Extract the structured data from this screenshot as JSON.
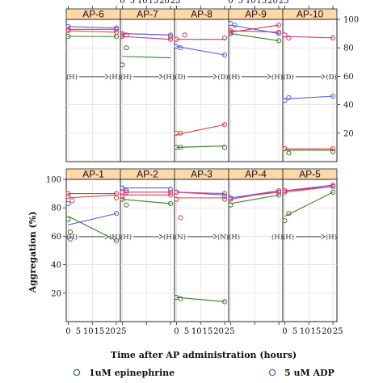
{
  "chart_data": {
    "type": "line",
    "ylabel": "Aggregation (%)",
    "xlabel": "Time after AP administration (hours)",
    "ylim": [
      0,
      100
    ],
    "xlim": [
      -1,
      26
    ],
    "y_ticks": [
      20,
      40,
      60,
      80,
      100
    ],
    "x_tick_labels": [
      "0",
      "5",
      "10",
      "15",
      "20",
      "25"
    ],
    "legend": [
      {
        "label": "1uM epinephrine",
        "color": "#3d7a2a"
      },
      {
        "label": "5 uM ADP",
        "color": "#5566dd"
      }
    ],
    "series_colors": {
      "green": "#3d7a2a",
      "red": "#e0403a",
      "blue": "#5566dd",
      "pink": "#d9336f"
    },
    "panels": [
      {
        "name": "AP-6",
        "markers": [
          "H",
          "H"
        ],
        "marker_line": true,
        "green": {
          "points": [
            [
              0,
              88
            ],
            [
              24,
              88
            ]
          ],
          "line": [
            [
              0,
              88
            ],
            [
              24,
              88
            ]
          ]
        },
        "red": {
          "points": [
            [
              0,
              92
            ],
            [
              24,
              91
            ]
          ],
          "line": [
            [
              0,
              92
            ],
            [
              24,
              91
            ]
          ]
        },
        "blue": {
          "points": [
            [
              0,
              95
            ],
            [
              24,
              94
            ]
          ],
          "line": [
            [
              0,
              95
            ],
            [
              24,
              94
            ]
          ]
        },
        "pink": {
          "points": [
            [
              0,
              93
            ],
            [
              24,
              93
            ]
          ],
          "line": [
            [
              0,
              93
            ],
            [
              24,
              93
            ]
          ]
        }
      },
      {
        "name": "AP-7",
        "markers": [
          "H",
          "H"
        ],
        "marker_line": true,
        "green": {
          "points": [
            [
              0,
              68
            ],
            [
              2,
              80
            ]
          ],
          "line": [
            [
              0,
              74
            ],
            [
              24,
              73
            ]
          ]
        },
        "red": {
          "points": [
            [
              0,
              89
            ],
            [
              2,
              89
            ],
            [
              24,
              88
            ]
          ],
          "line": [
            [
              0,
              90
            ],
            [
              24,
              89
            ]
          ]
        },
        "blue": {
          "points": [
            [
              0,
              90
            ],
            [
              24,
              89
            ]
          ],
          "line": [
            [
              0,
              90
            ],
            [
              24,
              89
            ]
          ]
        },
        "pink": {
          "points": [
            [
              0,
              88
            ],
            [
              24,
              86
            ]
          ],
          "line": [
            [
              0,
              88
            ],
            [
              24,
              86
            ]
          ]
        }
      },
      {
        "name": "AP-8",
        "markers": [
          "D",
          "D"
        ],
        "marker_line": true,
        "green": {
          "points": [
            [
              0,
              10
            ],
            [
              2,
              10
            ],
            [
              24,
              10
            ]
          ],
          "line": [
            [
              0,
              10
            ],
            [
              24,
              11
            ]
          ]
        },
        "red": {
          "points": [
            [
              0,
              20
            ],
            [
              2,
              20
            ],
            [
              24,
              26
            ]
          ],
          "line": [
            [
              0,
              19
            ],
            [
              24,
              26
            ]
          ]
        },
        "blue": {
          "points": [
            [
              0,
              81
            ],
            [
              2,
              80
            ],
            [
              24,
              75
            ]
          ],
          "line": [
            [
              0,
              81
            ],
            [
              24,
              75
            ]
          ]
        },
        "pink": {
          "points": [
            [
              0,
              86
            ],
            [
              4,
              89
            ],
            [
              24,
              87
            ]
          ],
          "line": [
            [
              0,
              86
            ],
            [
              24,
              86
            ]
          ]
        }
      },
      {
        "name": "AP-9",
        "markers": [
          "H",
          "H"
        ],
        "marker_line": true,
        "green": {
          "points": [
            [
              0,
              90
            ],
            [
              24,
              85
            ]
          ],
          "line": [
            [
              0,
              90
            ],
            [
              24,
              85
            ]
          ]
        },
        "red": {
          "points": [
            [
              0,
              92
            ],
            [
              24,
              91
            ]
          ],
          "line": [
            [
              0,
              92
            ],
            [
              24,
              91
            ]
          ]
        },
        "blue": {
          "points": [
            [
              0,
              97
            ],
            [
              2,
              96
            ],
            [
              24,
              90
            ]
          ],
          "line": [
            [
              0,
              96
            ],
            [
              24,
              90
            ]
          ]
        },
        "pink": {
          "points": [
            [
              0,
              91
            ],
            [
              24,
              96
            ]
          ],
          "line": [
            [
              0,
              91
            ],
            [
              24,
              96
            ]
          ]
        }
      },
      {
        "name": "AP-10",
        "markers": [
          "D",
          "D"
        ],
        "marker_line": true,
        "green": {
          "points": [
            [
              0,
              9
            ],
            [
              2,
              6
            ],
            [
              24,
              7
            ]
          ],
          "line": [
            [
              0,
              8
            ],
            [
              24,
              8
            ]
          ]
        },
        "red": {
          "points": [
            [
              0,
              9
            ],
            [
              24,
              9
            ]
          ],
          "line": [
            [
              0,
              9
            ],
            [
              24,
              9
            ]
          ]
        },
        "blue": {
          "points": [
            [
              0,
              43
            ],
            [
              2,
              45
            ],
            [
              24,
              46
            ]
          ],
          "line": [
            [
              0,
              44
            ],
            [
              24,
              46
            ]
          ]
        },
        "pink": {
          "points": [
            [
              0,
              89
            ],
            [
              2,
              87
            ],
            [
              24,
              87
            ]
          ],
          "line": [
            [
              0,
              88
            ],
            [
              24,
              87
            ]
          ]
        }
      },
      {
        "name": "AP-1",
        "markers": [
          "H",
          "H"
        ],
        "marker_line": true,
        "green": {
          "points": [
            [
              0,
              72
            ],
            [
              1,
              63
            ],
            [
              24,
              57
            ]
          ],
          "line": [
            [
              0,
              74
            ],
            [
              24,
              57
            ]
          ]
        },
        "red": {
          "points": [
            [
              0,
              88
            ],
            [
              2,
              85
            ],
            [
              24,
              87
            ]
          ],
          "line": [
            [
              0,
              87
            ],
            [
              24,
              89
            ]
          ]
        },
        "blue": {
          "points": [
            [
              0,
              83
            ],
            [
              1,
              58
            ],
            [
              24,
              76
            ]
          ],
          "line": [
            [
              0,
              68
            ],
            [
              24,
              76
            ]
          ]
        },
        "pink": {
          "points": [
            [
              0,
              90
            ],
            [
              24,
              90
            ]
          ],
          "line": [
            [
              0,
              90
            ],
            [
              24,
              90
            ]
          ]
        }
      },
      {
        "name": "AP-2",
        "markers": [
          "H",
          "H"
        ],
        "marker_line": true,
        "green": {
          "points": [
            [
              0,
              86
            ],
            [
              2,
              82
            ],
            [
              24,
              83
            ]
          ],
          "line": [
            [
              0,
              86
            ],
            [
              24,
              83
            ]
          ]
        },
        "red": {
          "points": [
            [
              0,
              88
            ],
            [
              24,
              89
            ]
          ],
          "line": [
            [
              0,
              89
            ],
            [
              24,
              89
            ]
          ]
        },
        "blue": {
          "points": [
            [
              0,
              94
            ],
            [
              2,
              92
            ],
            [
              24,
              93
            ]
          ],
          "line": [
            [
              0,
              94
            ],
            [
              24,
              94
            ]
          ]
        },
        "pink": {
          "points": [
            [
              0,
              91
            ],
            [
              2,
              91
            ],
            [
              24,
              91
            ]
          ],
          "line": [
            [
              0,
              91
            ],
            [
              24,
              91
            ]
          ]
        }
      },
      {
        "name": "AP-3",
        "markers": [
          "N",
          "N"
        ],
        "marker_line": true,
        "green": {
          "points": [
            [
              0,
              17
            ],
            [
              2,
              16
            ],
            [
              24,
              14
            ]
          ],
          "line": [
            [
              0,
              17
            ],
            [
              24,
              14
            ]
          ]
        },
        "red": {
          "points": [
            [
              0,
              86
            ],
            [
              2,
              73
            ],
            [
              24,
              86
            ]
          ],
          "line": [
            [
              0,
              87
            ],
            [
              24,
              87
            ]
          ]
        },
        "blue": {
          "points": [
            [
              0,
              91
            ],
            [
              24,
              88
            ]
          ],
          "line": [
            [
              0,
              91
            ],
            [
              24,
              89
            ]
          ]
        },
        "pink": {
          "points": [
            [
              0,
              91
            ],
            [
              24,
              90
            ]
          ],
          "line": [
            [
              0,
              91
            ],
            [
              24,
              90
            ]
          ]
        }
      },
      {
        "name": "AP-4",
        "markers": [
          "H",
          "H"
        ],
        "marker_line": false,
        "green": {
          "points": [
            [
              0,
              82
            ],
            [
              24,
              89
            ]
          ],
          "line": [
            [
              0,
              83
            ],
            [
              24,
              89
            ]
          ]
        },
        "red": {
          "points": [
            [
              0,
              87
            ],
            [
              24,
              91
            ]
          ],
          "line": [
            [
              0,
              87
            ],
            [
              24,
              91
            ]
          ]
        },
        "blue": {
          "points": [
            [
              0,
              87
            ],
            [
              24,
              91
            ]
          ],
          "line": [
            [
              0,
              87
            ],
            [
              24,
              92
            ]
          ]
        },
        "pink": {
          "points": [
            [
              0,
              86
            ],
            [
              24,
              92
            ]
          ],
          "line": [
            [
              0,
              86
            ],
            [
              24,
              92
            ]
          ]
        }
      },
      {
        "name": "AP-5",
        "markers": [
          "H",
          "H"
        ],
        "marker_line": true,
        "green": {
          "points": [
            [
              0,
              71
            ],
            [
              2,
              76
            ],
            [
              24,
              91
            ]
          ],
          "line": [
            [
              0,
              74
            ],
            [
              24,
              91
            ]
          ]
        },
        "red": {
          "points": [
            [
              0,
              91
            ],
            [
              24,
              95
            ]
          ],
          "line": [
            [
              0,
              91
            ],
            [
              24,
              95
            ]
          ]
        },
        "blue": {
          "points": [
            [
              0,
              92
            ],
            [
              24,
              96
            ]
          ],
          "line": [
            [
              0,
              92
            ],
            [
              24,
              96
            ]
          ]
        },
        "pink": {
          "points": [
            [
              0,
              92
            ],
            [
              24,
              95
            ]
          ],
          "line": [
            [
              0,
              92
            ],
            [
              24,
              95
            ]
          ]
        }
      }
    ]
  }
}
